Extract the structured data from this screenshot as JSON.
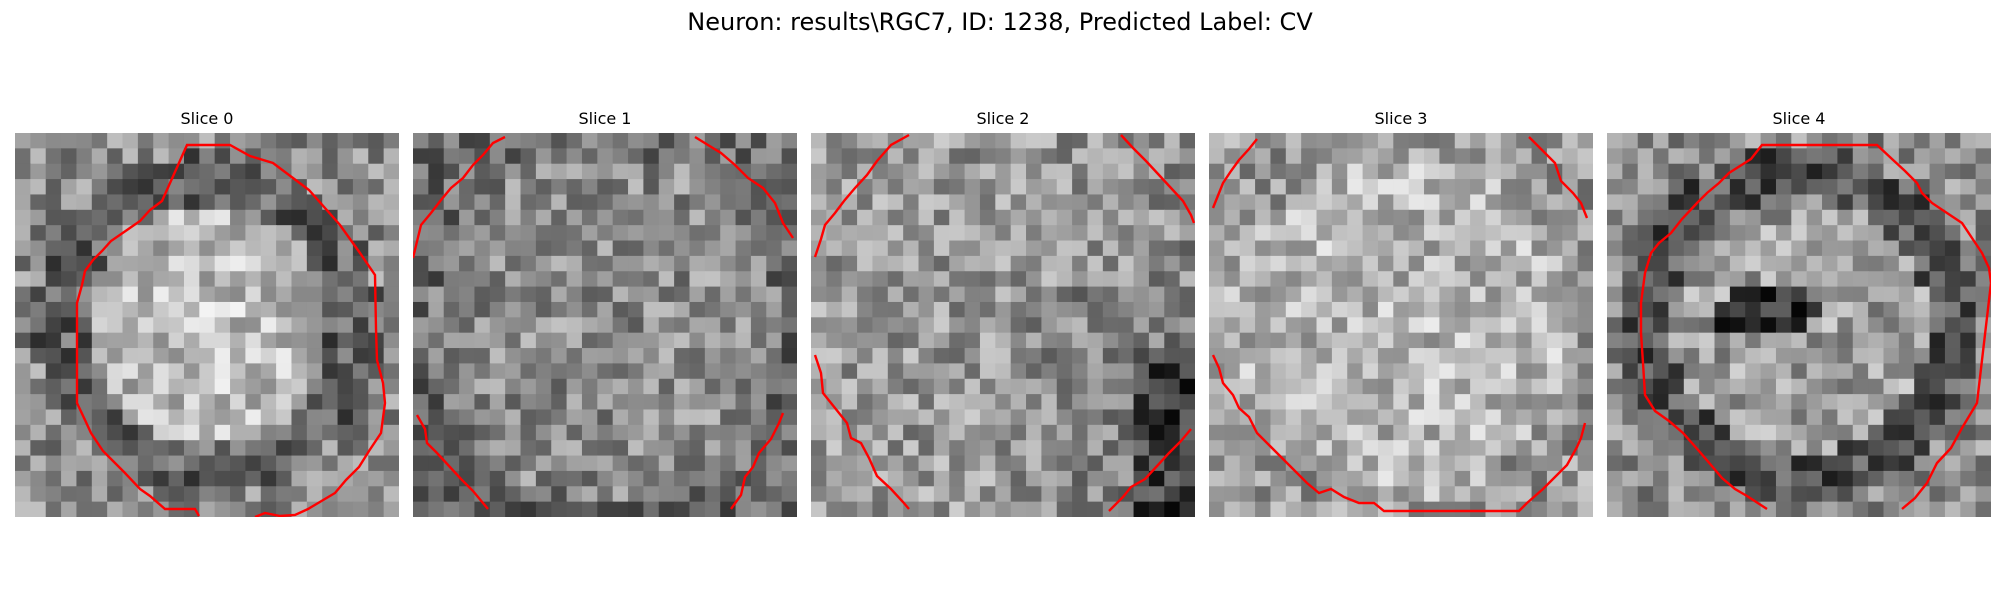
{
  "figure": {
    "title": "Neuron: results\\RGC7, ID: 1238, Predicted Label: CV",
    "contour_color": "#ff0000",
    "colormap": "gray"
  },
  "panels": [
    {
      "title": "Slice 0",
      "kind": "slice0"
    },
    {
      "title": "Slice 1",
      "kind": "slice1"
    },
    {
      "title": "Slice 2",
      "kind": "slice2"
    },
    {
      "title": "Slice 3",
      "kind": "slice3"
    },
    {
      "title": "Slice 4",
      "kind": "slice4"
    }
  ]
}
